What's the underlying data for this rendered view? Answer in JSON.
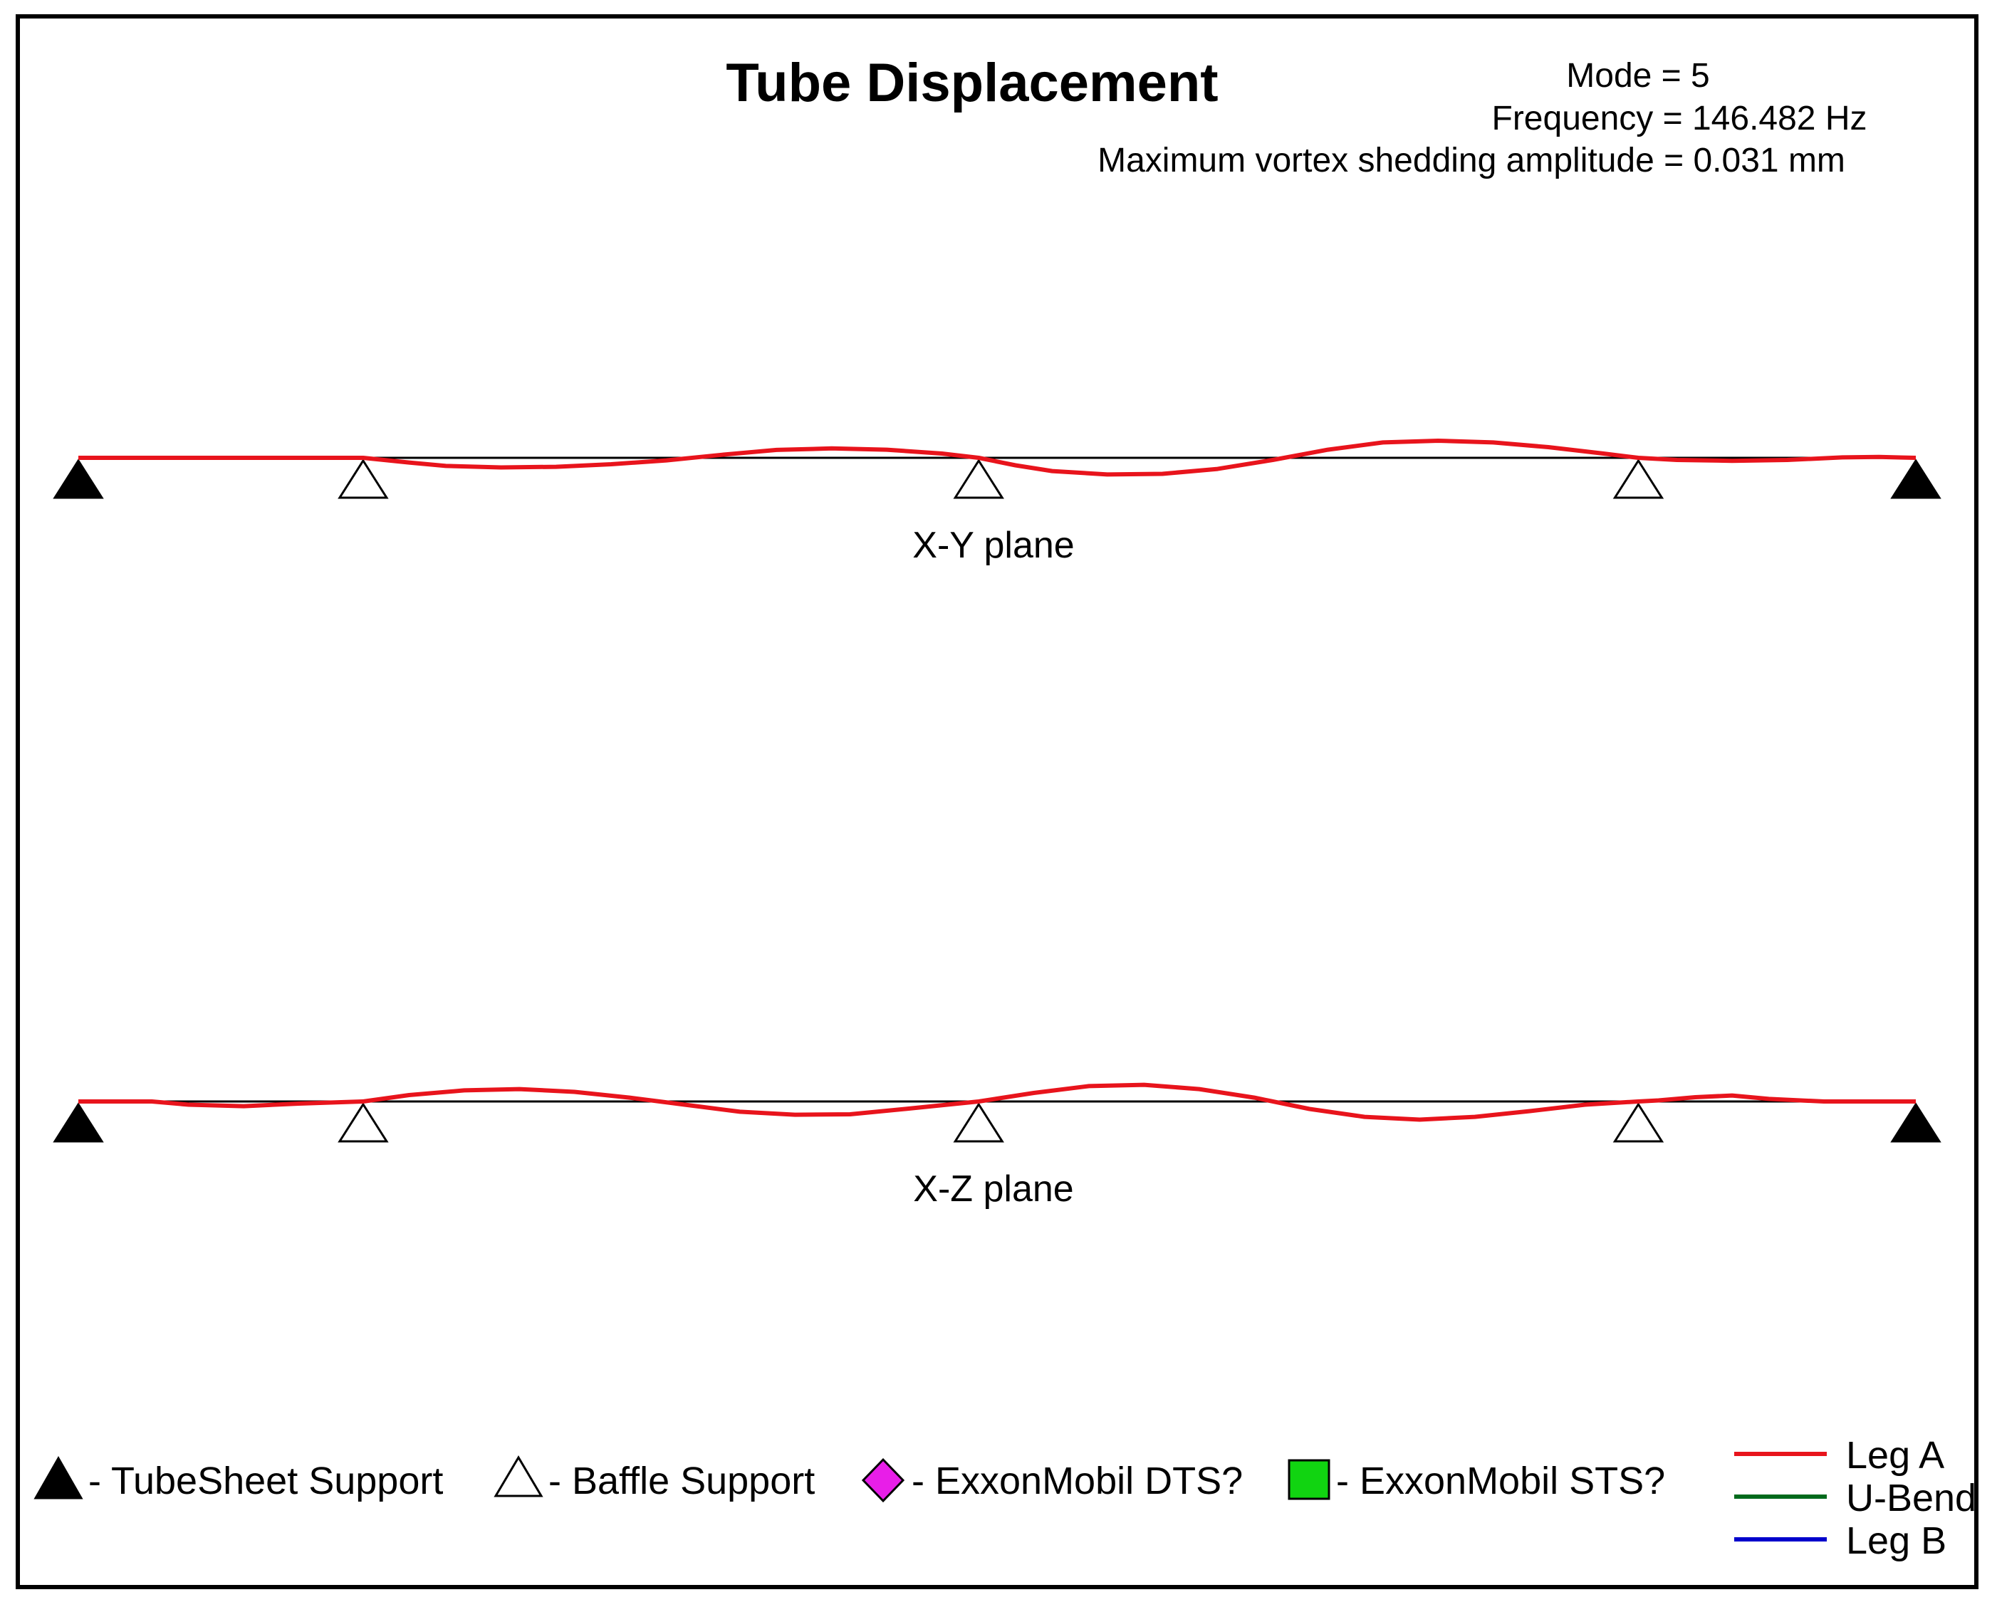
{
  "colors": {
    "leg_a": "#e8141c",
    "u_bend": "#006a1c",
    "leg_b": "#0000cc",
    "tubesheet": "#000000",
    "baffle": "#ffffff",
    "dts": "#e81ee8",
    "sts": "#11d411"
  },
  "chart_data": {
    "type": "line",
    "title": "Tube Displacement",
    "info": {
      "mode": "Mode = 5",
      "frequency": "Frequency = 146.482 Hz",
      "amplitude": "Maximum vortex shedding amplitude = 0.031 mm"
    },
    "x_range": [
      0,
      100
    ],
    "y_range": [
      -1,
      1
    ],
    "supports": {
      "tubesheet": [
        0,
        100
      ],
      "baffle": [
        15.5,
        49,
        84.9
      ]
    },
    "planes": [
      {
        "label": "X-Y plane",
        "series": [
          {
            "name": "Leg A",
            "x": [
              0,
              4,
              8,
              12,
              15.5,
              18,
              20,
              23,
              26,
              29,
              32,
              35,
              38,
              41,
              44,
              47,
              49,
              51,
              53,
              56,
              59,
              62,
              65,
              68,
              71,
              74,
              77,
              80,
              83,
              84.9,
              87,
              90,
              93,
              96,
              98,
              100
            ],
            "y": [
              0,
              0,
              0,
              0,
              0,
              -0.22,
              -0.38,
              -0.45,
              -0.42,
              -0.3,
              -0.12,
              0.14,
              0.37,
              0.44,
              0.38,
              0.2,
              0,
              -0.35,
              -0.62,
              -0.78,
              -0.75,
              -0.52,
              -0.1,
              0.38,
              0.72,
              0.8,
              0.72,
              0.5,
              0.2,
              0,
              -0.1,
              -0.14,
              -0.1,
              0.02,
              0.04,
              0
            ]
          },
          {
            "name": "U-Bend",
            "x": [],
            "y": []
          },
          {
            "name": "Leg B",
            "x": [],
            "y": []
          }
        ]
      },
      {
        "label": "X-Z plane",
        "series": [
          {
            "name": "Leg A",
            "x": [
              0,
              4,
              6,
              9,
              12,
              15.5,
              18,
              21,
              24,
              27,
              30,
              33,
              36,
              39,
              42,
              45,
              49,
              52,
              55,
              58,
              61,
              64,
              67,
              70,
              73,
              76,
              79,
              82,
              84.9,
              86,
              88,
              90,
              92,
              95,
              98,
              100
            ],
            "y": [
              0,
              0,
              -0.15,
              -0.22,
              -0.1,
              0,
              0.3,
              0.52,
              0.58,
              0.45,
              0.18,
              -0.15,
              -0.48,
              -0.62,
              -0.6,
              -0.35,
              0,
              0.4,
              0.72,
              0.78,
              0.58,
              0.18,
              -0.35,
              -0.72,
              -0.85,
              -0.72,
              -0.45,
              -0.15,
              0,
              0.05,
              0.2,
              0.28,
              0.12,
              0,
              0,
              0
            ]
          },
          {
            "name": "U-Bend",
            "x": [],
            "y": []
          },
          {
            "name": "Leg B",
            "x": [],
            "y": []
          }
        ]
      }
    ],
    "legend": {
      "symbols": [
        {
          "label": "- TubeSheet Support",
          "icon": "filled-triangle"
        },
        {
          "label": "- Baffle Support",
          "icon": "open-triangle"
        },
        {
          "label": "- ExxonMobil DTS?",
          "icon": "magenta-diamond"
        },
        {
          "label": "- ExxonMobil STS?",
          "icon": "green-square"
        }
      ],
      "lines": [
        "Leg A",
        "U-Bend",
        "Leg B"
      ]
    }
  }
}
